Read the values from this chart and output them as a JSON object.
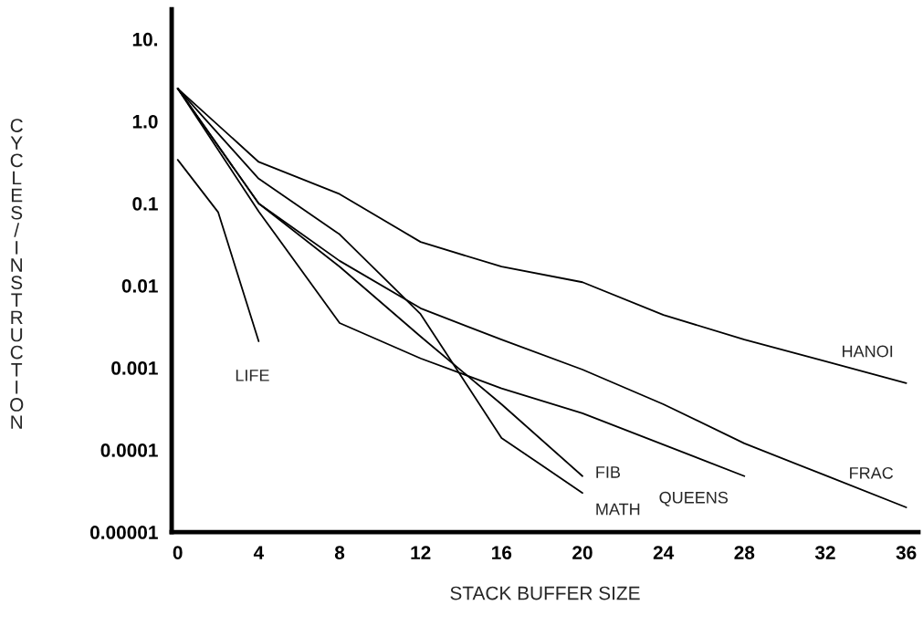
{
  "chart_data": {
    "type": "line",
    "xlabel": "STACK BUFFER SIZE",
    "ylabel": "CYCLES/INSTRUCTION",
    "log": "y",
    "grid": false,
    "legend": false,
    "marker": "none",
    "line_style": "solid",
    "xlim": [
      -0.3,
      36.6
    ],
    "xticks": [
      0,
      4,
      8,
      12,
      16,
      20,
      24,
      28,
      32,
      36
    ],
    "ylim": [
      1e-05,
      23
    ],
    "yticks": [
      {
        "value": 10,
        "label": "10."
      },
      {
        "value": 1,
        "label": "1.0"
      },
      {
        "value": 0.1,
        "label": "0.1"
      },
      {
        "value": 0.01,
        "label": "0.01"
      },
      {
        "value": 0.001,
        "label": "0.001"
      },
      {
        "value": 0.0001,
        "label": "0.0001"
      },
      {
        "value": 1e-05,
        "label": "0.00001"
      }
    ],
    "series": [
      {
        "name": "HANOI",
        "color": "#000000",
        "x": [
          0,
          4,
          8,
          12,
          16,
          20,
          24,
          28,
          32,
          36
        ],
        "values": [
          2.5,
          0.32,
          0.13,
          0.034,
          0.017,
          0.011,
          0.0044,
          0.0022,
          0.0012,
          0.00065
        ]
      },
      {
        "name": "FRAC",
        "color": "#000000",
        "x": [
          0,
          4,
          8,
          12,
          16,
          20,
          24,
          28,
          32,
          36
        ],
        "values": [
          2.5,
          0.1,
          0.02,
          0.0053,
          0.0022,
          0.00095,
          0.00036,
          0.00012,
          4.9e-05,
          2e-05
        ]
      },
      {
        "name": "QUEENS",
        "color": "#000000",
        "x": [
          0,
          4,
          8,
          12,
          16,
          20,
          28
        ],
        "values": [
          2.5,
          0.08,
          0.0035,
          0.0013,
          0.00056,
          0.00028,
          4.8e-05
        ]
      },
      {
        "name": "FIB",
        "color": "#000000",
        "x": [
          0,
          4,
          8,
          12,
          16,
          20
        ],
        "values": [
          2.5,
          0.1,
          0.017,
          0.0024,
          0.00036,
          4.8e-05
        ]
      },
      {
        "name": "MATH",
        "color": "#000000",
        "x": [
          0,
          4,
          8,
          12,
          16,
          20
        ],
        "values": [
          2.5,
          0.2,
          0.042,
          0.0045,
          0.00014,
          3e-05
        ]
      },
      {
        "name": "LIFE",
        "color": "#000000",
        "x": [
          0,
          2,
          4
        ],
        "values": [
          0.34,
          0.078,
          0.0021
        ]
      }
    ]
  }
}
